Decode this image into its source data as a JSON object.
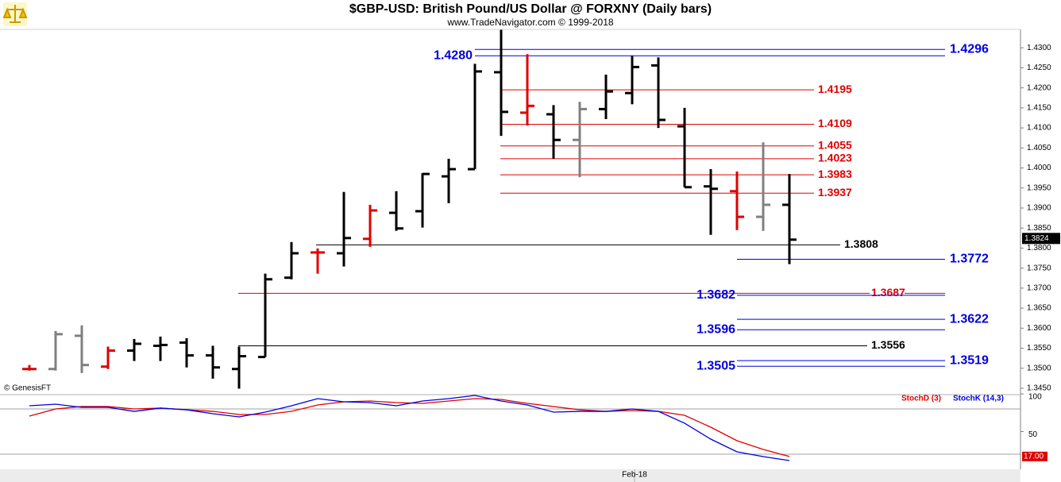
{
  "chart_data": [
    {
      "type": "ohlc",
      "title": "$GBP-USD:  British Pound/US Dollar @ FORXNY  (Daily bars)",
      "subtitle": "www.TradeNavigator.com © 1999-2018",
      "note": "© GenesisFT",
      "categories": [
        null,
        null,
        null,
        null,
        null,
        null,
        null,
        null,
        null,
        null,
        null,
        null,
        null,
        null,
        null,
        null,
        null,
        null,
        null,
        null,
        null,
        null,
        null,
        "Feb-18",
        null,
        null,
        null,
        null,
        null,
        null
      ],
      "open": [
        1.3498,
        1.3498,
        1.3581,
        1.3504,
        1.3544,
        1.3556,
        1.3564,
        1.3532,
        1.3498,
        1.3528,
        1.3726,
        1.3789,
        1.3787,
        1.3823,
        1.3888,
        1.3892,
        1.3979,
        1.3997,
        1.4239,
        1.4138,
        1.4134,
        1.407,
        1.4147,
        1.4187,
        1.4256,
        1.4104,
        1.3954,
        1.3942,
        1.3878,
        1.3908
      ],
      "high": [
        1.3508,
        1.3593,
        1.3607,
        1.3554,
        1.3573,
        1.3579,
        1.3575,
        1.3556,
        1.3554,
        1.3736,
        1.3815,
        1.3799,
        1.394,
        1.3908,
        1.3942,
        1.3987,
        1.4023,
        1.426,
        1.4345,
        1.4284,
        1.4157,
        1.4165,
        1.4233,
        1.428,
        1.4276,
        1.415,
        1.3997,
        1.3991,
        1.4064,
        1.3985
      ],
      "low": [
        1.3494,
        1.3494,
        1.3488,
        1.3498,
        1.3518,
        1.3518,
        1.3502,
        1.3474,
        1.3449,
        1.3528,
        1.3722,
        1.3736,
        1.3754,
        1.3803,
        1.3843,
        1.3851,
        1.3912,
        1.3997,
        1.408,
        1.4106,
        1.4023,
        1.3977,
        1.4122,
        1.4159,
        1.41,
        1.3952,
        1.3833,
        1.3845,
        1.3843,
        1.376
      ],
      "close": [
        1.3498,
        1.3585,
        1.3508,
        1.3544,
        1.3561,
        1.3558,
        1.3532,
        1.3502,
        1.353,
        1.3722,
        1.3787,
        1.3789,
        1.3825,
        1.3894,
        1.3849,
        1.3985,
        1.3997,
        1.4241,
        1.414,
        1.4155,
        1.407,
        1.4147,
        1.4191,
        1.4252,
        1.412,
        1.3952,
        1.3948,
        1.3878,
        1.3908,
        1.3821
      ],
      "colors": [
        "#e00000",
        "#808080",
        "#808080",
        "#e00000",
        "#000000",
        "#000000",
        "#000000",
        "#000000",
        "#000000",
        "#000000",
        "#000000",
        "#e00000",
        "#000000",
        "#e00000",
        "#000000",
        "#000000",
        "#000000",
        "#000000",
        "#000000",
        "#e00000",
        "#000000",
        "#808080",
        "#000000",
        "#000000",
        "#000000",
        "#000000",
        "#000000",
        "#e00000",
        "#808080",
        "#000000"
      ],
      "last_price": {
        "value": 1.3824,
        "label": "1.3824"
      },
      "levels": [
        {
          "value": 1.4296,
          "label": "1.4296",
          "color": "#0000e0"
        },
        {
          "value": 1.428,
          "label": "1.4280",
          "color": "#0000e0"
        },
        {
          "value": 1.4195,
          "label": "1.4195",
          "color": "#e00000"
        },
        {
          "value": 1.4109,
          "label": "1.4109",
          "color": "#e00000"
        },
        {
          "value": 1.4055,
          "label": "1.4055",
          "color": "#e00000"
        },
        {
          "value": 1.4023,
          "label": "1.4023",
          "color": "#e00000"
        },
        {
          "value": 1.3983,
          "label": "1.3983",
          "color": "#e00000"
        },
        {
          "value": 1.3937,
          "label": "1.3937",
          "color": "#e00000"
        },
        {
          "value": 1.3808,
          "label": "1.3808",
          "color": "#000000"
        },
        {
          "value": 1.3772,
          "label": "1.3772",
          "color": "#0000e0"
        },
        {
          "value": 1.3687,
          "label": "1.3687",
          "color": "#e00000"
        },
        {
          "value": 1.3682,
          "label": "1.3682",
          "color": "#0000e0"
        },
        {
          "value": 1.3622,
          "label": "1.3622",
          "color": "#0000e0"
        },
        {
          "value": 1.3596,
          "label": "1.3596",
          "color": "#0000e0"
        },
        {
          "value": 1.3556,
          "label": "1.3556",
          "color": "#000000"
        },
        {
          "value": 1.3519,
          "label": "1.3519",
          "color": "#0000e0"
        },
        {
          "value": 1.3505,
          "label": "1.3505",
          "color": "#0000e0"
        }
      ],
      "ylim": [
        1.3434,
        1.4346
      ],
      "yticks": [
        {
          "value": 1.345,
          "label": "1.3450"
        },
        {
          "value": 1.35,
          "label": "1.3500"
        },
        {
          "value": 1.355,
          "label": "1.3550"
        },
        {
          "value": 1.36,
          "label": "1.3600"
        },
        {
          "value": 1.365,
          "label": "1.3650"
        },
        {
          "value": 1.37,
          "label": "1.3700"
        },
        {
          "value": 1.375,
          "label": "1.3750"
        },
        {
          "value": 1.38,
          "label": "1.3800"
        },
        {
          "value": 1.385,
          "label": "1.3850"
        },
        {
          "value": 1.39,
          "label": "1.3900"
        },
        {
          "value": 1.395,
          "label": "1.3950"
        },
        {
          "value": 1.4,
          "label": "1.4000"
        },
        {
          "value": 1.405,
          "label": "1.4050"
        },
        {
          "value": 1.41,
          "label": "1.4100"
        },
        {
          "value": 1.415,
          "label": "1.4150"
        },
        {
          "value": 1.42,
          "label": "1.4200"
        },
        {
          "value": 1.425,
          "label": "1.4250"
        },
        {
          "value": 1.43,
          "label": "1.4300"
        }
      ]
    },
    {
      "type": "line",
      "series": [
        {
          "name": "StochD (3)",
          "color": "#e00000",
          "values": [
            70.5,
            80.0,
            83.2,
            83.2,
            80.0,
            81.1,
            78.9,
            76.8,
            72.6,
            72.6,
            76.8,
            85.3,
            89.5,
            90.5,
            88.4,
            87.4,
            90.5,
            93.7,
            92.6,
            87.4,
            83.2,
            78.9,
            76.8,
            77.9,
            76.8,
            71.6,
            55.8,
            37.9,
            26.3,
            17.0
          ]
        },
        {
          "name": "StochK (14,3)",
          "color": "#0000e0",
          "values": [
            84.2,
            86.3,
            82.1,
            82.1,
            76.8,
            81.1,
            78.9,
            73.7,
            69.5,
            75.8,
            84.2,
            93.7,
            89.5,
            88.4,
            84.2,
            90.5,
            93.7,
            97.9,
            90.5,
            85.3,
            75.8,
            76.8,
            76.8,
            80.0,
            76.8,
            61.1,
            40.0,
            23.2,
            16.8,
            11.6
          ]
        }
      ],
      "last_value": {
        "value": 17.0,
        "label": "17.00"
      },
      "levels": [
        80,
        20
      ],
      "ylim": [
        0,
        100
      ],
      "yticks": [
        50,
        100
      ]
    }
  ]
}
